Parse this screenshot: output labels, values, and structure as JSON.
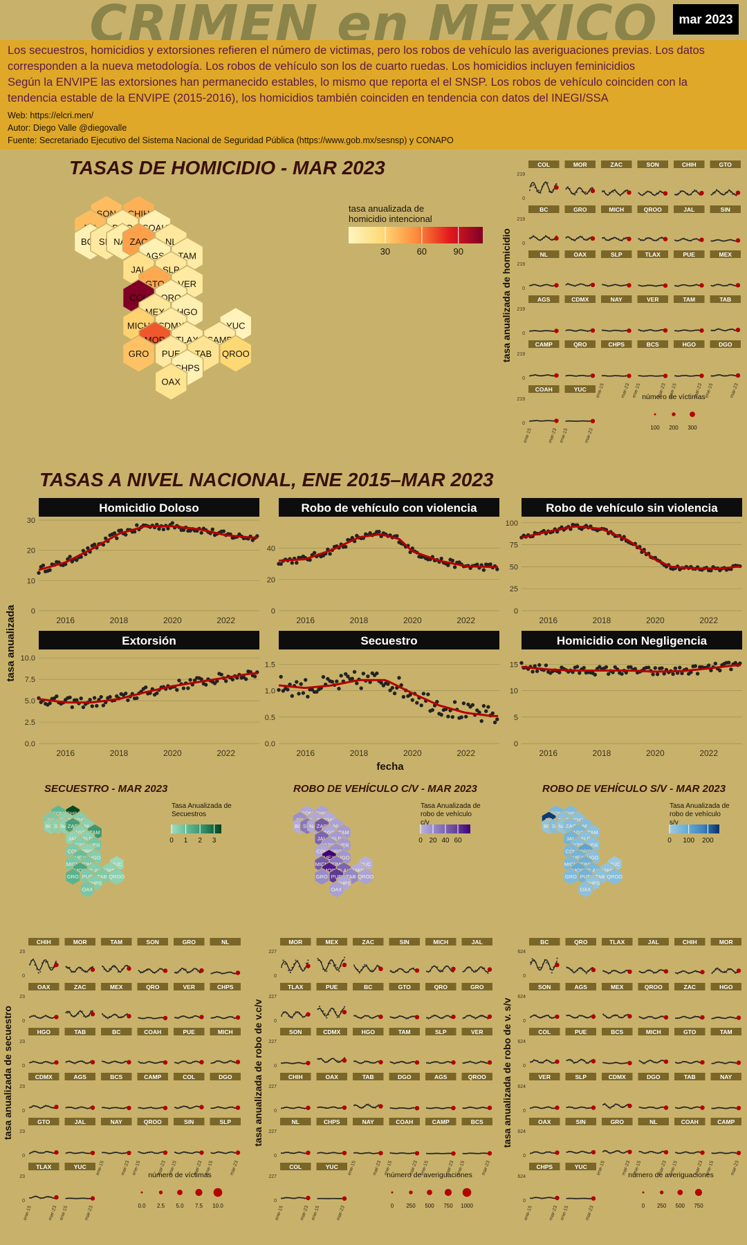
{
  "header": {
    "title": "CRIMEN en MEXICO",
    "date": "mar 2023"
  },
  "description": {
    "lines": [
      "Los secuestros, homicidios y extorsiones refieren el número de victimas, pero los robos de vehículo las averiguaciones previas. Los datos",
      "corresponden a la nueva metodología. Los robos de vehículo son los de cuarto ruedas. Los homicidios incluyen feminicidios",
      "Según la ENVIPE las extorsiones han permanecido estables, lo mismo que reporta el el SNSP. Los robos de vehículo coinciden con la",
      "tendencia estable de la ENVIPE (2015-2016), los homicidios también coinciden en tendencia con datos del INEGI/SSA"
    ],
    "web": "Web: https://elcri.men/",
    "author": "Autor: Diego Valle @diegovalle",
    "source": "Fuente: Secretariado Ejecutivo del Sistema Nacional de Seguridad Pública (https://www.gob.mx/sesnsp) y CONAPO"
  },
  "colors": {
    "background": "#c8b26b",
    "banner": "#e0a828",
    "panel_header": "#0d0d0d",
    "facet_strip": "#7a6628",
    "trend_line": "#b50000",
    "points": "#222222"
  },
  "chart_data": [
    {
      "type": "heatmap",
      "id": "homicide-hexmap",
      "title": "TASAS DE HOMICIDIO - MAR 2023",
      "legend_title": "tasa anualizada de homicidio intencional",
      "legend_ticks": [
        30,
        60,
        90
      ],
      "range": [
        0,
        110
      ],
      "palette": [
        "#fff5c0",
        "#fed976",
        "#fd8d3c",
        "#e31a1c",
        "#800026"
      ],
      "cells": [
        {
          "state": "SON",
          "q": 2,
          "r": 0,
          "value": 38
        },
        {
          "state": "CHIH",
          "q": 4,
          "r": 0,
          "value": 42
        },
        {
          "state": "BC",
          "q": 1,
          "r": 1,
          "value": 38
        },
        {
          "state": "DGO",
          "q": 3,
          "r": 1,
          "value": 10
        },
        {
          "state": "COAH",
          "q": 5,
          "r": 1,
          "value": 5
        },
        {
          "state": "BCS",
          "q": 1,
          "r": 2,
          "value": 4
        },
        {
          "state": "SIN",
          "q": 2,
          "r": 2,
          "value": 12
        },
        {
          "state": "NAY",
          "q": 3,
          "r": 2,
          "value": 8
        },
        {
          "state": "ZAC",
          "q": 4,
          "r": 2,
          "value": 48
        },
        {
          "state": "NL",
          "q": 6,
          "r": 2,
          "value": 13
        },
        {
          "state": "AGS",
          "q": 5,
          "r": 3,
          "value": 5
        },
        {
          "state": "TAM",
          "q": 7,
          "r": 3,
          "value": 10
        },
        {
          "state": "JAL",
          "q": 4,
          "r": 4,
          "value": 20
        },
        {
          "state": "SLP",
          "q": 6,
          "r": 4,
          "value": 13
        },
        {
          "state": "GTO",
          "q": 5,
          "r": 5,
          "value": 45
        },
        {
          "state": "VER",
          "q": 7,
          "r": 5,
          "value": 11
        },
        {
          "state": "COL",
          "q": 4,
          "r": 6,
          "value": 110
        },
        {
          "state": "QRO",
          "q": 6,
          "r": 6,
          "value": 7
        },
        {
          "state": "MEX",
          "q": 5,
          "r": 7,
          "value": 14
        },
        {
          "state": "HGO",
          "q": 7,
          "r": 7,
          "value": 6
        },
        {
          "state": "MICH",
          "q": 4,
          "r": 8,
          "value": 30
        },
        {
          "state": "CDMX",
          "q": 6,
          "r": 8,
          "value": 10
        },
        {
          "state": "YUC",
          "q": 10,
          "r": 8,
          "value": 2
        },
        {
          "state": "MOR",
          "q": 5,
          "r": 9,
          "value": 68
        },
        {
          "state": "TLAX",
          "q": 7,
          "r": 9,
          "value": 9
        },
        {
          "state": "CAMP",
          "q": 9,
          "r": 9,
          "value": 10
        },
        {
          "state": "GRO",
          "q": 4,
          "r": 10,
          "value": 36
        },
        {
          "state": "PUE",
          "q": 6,
          "r": 10,
          "value": 12
        },
        {
          "state": "TAB",
          "q": 8,
          "r": 10,
          "value": 17
        },
        {
          "state": "QROO",
          "q": 10,
          "r": 10,
          "value": 28
        },
        {
          "state": "CHPS",
          "q": 7,
          "r": 11,
          "value": 5
        },
        {
          "state": "OAX",
          "q": 6,
          "r": 12,
          "value": 18
        }
      ]
    },
    {
      "type": "line",
      "id": "homicide-small-multiples",
      "ylabel": "tasa anualizada de homicidio",
      "y_tick": "219",
      "legend_title": "número de víctimas",
      "legend_ticks": [
        "100",
        "200",
        "300"
      ],
      "x_ticks": [
        "ene-15",
        "mar-23"
      ],
      "states": [
        "COL",
        "MOR",
        "ZAC",
        "SON",
        "CHIH",
        "GTO",
        "BC",
        "GRO",
        "MICH",
        "QROO",
        "JAL",
        "SIN",
        "NL",
        "OAX",
        "SLP",
        "TLAX",
        "PUE",
        "MEX",
        "AGS",
        "CDMX",
        "NAY",
        "VER",
        "TAM",
        "TAB",
        "CAMP",
        "QRO",
        "CHPS",
        "BCS",
        "HGO",
        "DGO",
        "COAH",
        "YUC"
      ],
      "levels": [
        110,
        68,
        48,
        38,
        42,
        45,
        38,
        36,
        30,
        28,
        20,
        12,
        13,
        18,
        13,
        9,
        12,
        14,
        5,
        10,
        8,
        11,
        10,
        17,
        10,
        7,
        5,
        4,
        6,
        10,
        5,
        2
      ]
    },
    {
      "type": "line",
      "id": "national-trends",
      "title": "TASAS A NIVEL NACIONAL, ENE 2015–MAR 2023",
      "xlabel": "fecha",
      "ylabel": "tasa anualizada",
      "x_range": [
        2015,
        2023.25
      ],
      "x_ticks": [
        2016,
        2018,
        2020,
        2022
      ],
      "panels": [
        {
          "name": "Homicidio Doloso",
          "ylim": [
            0,
            30
          ],
          "yticks": [
            0,
            10,
            20,
            30
          ],
          "tick_labels": [
            "0",
            "10",
            "20",
            "30"
          ],
          "trend": [
            [
              2015,
              13.5
            ],
            [
              2016,
              16
            ],
            [
              2017,
              20.5
            ],
            [
              2018,
              25.5
            ],
            [
              2019,
              28
            ],
            [
              2020,
              28
            ],
            [
              2021,
              27
            ],
            [
              2022,
              25
            ],
            [
              2023,
              24.2
            ]
          ],
          "noise": 1.2
        },
        {
          "name": "Robo de vehículo con violencia",
          "ylim": [
            0,
            58
          ],
          "yticks": [
            0,
            20,
            40
          ],
          "tick_labels": [
            "0",
            "20",
            "40"
          ],
          "trend": [
            [
              2015,
              32
            ],
            [
              2016,
              33
            ],
            [
              2017,
              39
            ],
            [
              2018,
              47
            ],
            [
              2018.8,
              49
            ],
            [
              2019.5,
              46
            ],
            [
              2020,
              38
            ],
            [
              2021,
              32
            ],
            [
              2022,
              28.5
            ],
            [
              2023,
              28
            ]
          ],
          "noise": 2.2
        },
        {
          "name": "Robo de vehículo sin violencia",
          "ylim": [
            0,
            103
          ],
          "yticks": [
            0,
            25,
            50,
            75,
            100
          ],
          "tick_labels": [
            "0",
            "25",
            "50",
            "75",
            "100"
          ],
          "trend": [
            [
              2015,
              83
            ],
            [
              2016,
              90
            ],
            [
              2017,
              96
            ],
            [
              2018,
              93
            ],
            [
              2019,
              80
            ],
            [
              2020,
              58
            ],
            [
              2020.6,
              50
            ],
            [
              2021.5,
              48
            ],
            [
              2022.5,
              48
            ],
            [
              2023,
              50
            ]
          ],
          "noise": 2.5
        },
        {
          "name": "Extorsión",
          "ylim": [
            0,
            10.5
          ],
          "yticks": [
            0,
            2.5,
            5,
            7.5,
            10
          ],
          "tick_labels": [
            "0.0",
            "2.5",
            "5.0",
            "7.5",
            "10.0"
          ],
          "trend": [
            [
              2015,
              5.2
            ],
            [
              2016,
              4.8
            ],
            [
              2017,
              4.8
            ],
            [
              2018,
              5.2
            ],
            [
              2019,
              6
            ],
            [
              2020,
              6.7
            ],
            [
              2021,
              7.2
            ],
            [
              2022,
              7.7
            ],
            [
              2023,
              8.2
            ]
          ],
          "noise": 0.6
        },
        {
          "name": "Secuestro",
          "ylim": [
            0,
            1.7
          ],
          "yticks": [
            0,
            0.5,
            1,
            1.5
          ],
          "tick_labels": [
            "0.0",
            "0.5",
            "1.0",
            "1.5"
          ],
          "trend": [
            [
              2015,
              1.1
            ],
            [
              2016,
              1.05
            ],
            [
              2017,
              1.1
            ],
            [
              2018,
              1.2
            ],
            [
              2019,
              1.2
            ],
            [
              2020,
              0.95
            ],
            [
              2021,
              0.72
            ],
            [
              2022,
              0.58
            ],
            [
              2023,
              0.52
            ]
          ],
          "noise": 0.18
        },
        {
          "name": "Homicidio con Negligencia",
          "ylim": [
            0,
            17
          ],
          "yticks": [
            0,
            5,
            10,
            15
          ],
          "tick_labels": [
            "0",
            "5",
            "10",
            "15"
          ],
          "trend": [
            [
              2015,
              14.5
            ],
            [
              2016,
              14
            ],
            [
              2017,
              13.8
            ],
            [
              2018,
              13.8
            ],
            [
              2019,
              13.8
            ],
            [
              2020,
              13.6
            ],
            [
              2021,
              13.7
            ],
            [
              2022,
              14.2
            ],
            [
              2023,
              14.8
            ]
          ],
          "noise": 0.8
        }
      ]
    },
    {
      "type": "heatmap",
      "id": "secuestro-hexmap",
      "title": "SECUESTRO - MAR 2023",
      "legend_title": "Tasa Anualizada de Secuestros",
      "legend_ticks": [
        "0",
        "1",
        "2",
        "3"
      ],
      "range": [
        0,
        3.5
      ],
      "palette": [
        "#a0dcc0",
        "#5fb894",
        "#2e8b63",
        "#00441b"
      ],
      "values": {
        "SON": 1.2,
        "CHIH": 3.4,
        "BC": 0.6,
        "DGO": 0.4,
        "COAH": 0.5,
        "BCS": 0.3,
        "SIN": 0.4,
        "NAY": 0.3,
        "ZAC": 1.8,
        "NL": 0.4,
        "AGS": 0.4,
        "TAM": 2.0,
        "JAL": 0.3,
        "SLP": 0.4,
        "GTO": 0.5,
        "VER": 0.7,
        "COL": 0.6,
        "QRO": 0.3,
        "MEX": 1.0,
        "HGO": 0.5,
        "MICH": 0.7,
        "CDMX": 0.7,
        "YUC": 0.1,
        "MOR": 1.6,
        "TLAX": 0.5,
        "CAMP": 0.3,
        "GRO": 1.3,
        "PUE": 0.6,
        "TAB": 0.6,
        "QROO": 0.4,
        "CHPS": 0.5,
        "OAX": 0.7
      }
    },
    {
      "type": "heatmap",
      "id": "robo-cv-hexmap",
      "title": "ROBO DE VEHÍCULO C/V - MAR 2023",
      "legend_title": "Tasa Anualizada de robo de vehículo c/v",
      "legend_ticks": [
        "0",
        "20",
        "40",
        "60"
      ],
      "range": [
        0,
        80
      ],
      "palette": [
        "#b8b2dc",
        "#8d7fc4",
        "#6a4a9e",
        "#3f007d"
      ],
      "values": {
        "SON": 6,
        "CHIH": 8,
        "BC": 18,
        "DGO": 5,
        "COAH": 4,
        "BCS": 3,
        "SIN": 30,
        "NAY": 5,
        "ZAC": 45,
        "NL": 8,
        "AGS": 6,
        "TAM": 12,
        "JAL": 40,
        "SLP": 12,
        "GTO": 15,
        "VER": 12,
        "COL": 6,
        "QRO": 18,
        "MEX": 80,
        "HGO": 14,
        "MICH": 45,
        "CDMX": 30,
        "YUC": 1,
        "MOR": 70,
        "TLAX": 40,
        "CAMP": 2,
        "GRO": 20,
        "PUE": 60,
        "TAB": 22,
        "QROO": 8,
        "CHPS": 6,
        "OAX": 10
      }
    },
    {
      "type": "heatmap",
      "id": "robo-sv-hexmap",
      "title": "ROBO DE VEHÍCULO S/V - MAR 2023",
      "legend_title": "Tasa Anualizada de robo de vehículo s/v",
      "legend_ticks": [
        "0",
        "100",
        "200"
      ],
      "range": [
        0,
        260
      ],
      "palette": [
        "#9ecae1",
        "#6baed6",
        "#3f84c0",
        "#08306b"
      ],
      "values": {
        "SON": 60,
        "CHIH": 50,
        "BC": 250,
        "DGO": 30,
        "COAH": 30,
        "BCS": 20,
        "SIN": 40,
        "NAY": 20,
        "ZAC": 40,
        "NL": 40,
        "AGS": 60,
        "TAM": 30,
        "JAL": 70,
        "SLP": 30,
        "GTO": 40,
        "VER": 30,
        "COL": 60,
        "QRO": 110,
        "MEX": 70,
        "HGO": 30,
        "MICH": 60,
        "CDMX": 80,
        "YUC": 5,
        "MOR": 90,
        "TLAX": 60,
        "CAMP": 20,
        "GRO": 50,
        "PUE": 70,
        "TAB": 30,
        "QROO": 40,
        "CHPS": 20,
        "OAX": 30
      }
    },
    {
      "type": "line",
      "id": "secuestro-small-multiples",
      "ylabel": "tasa anualizada de secuestro",
      "y_tick": "23",
      "legend_title": "número de víctimas",
      "legend_ticks": [
        "0.0",
        "2.5",
        "5.0",
        "7.5",
        "10.0"
      ],
      "x_ticks": [
        "ene-15",
        "mar-23"
      ],
      "states": [
        "CHIH",
        "MOR",
        "TAM",
        "SON",
        "GRO",
        "NL",
        "OAX",
        "ZAC",
        "MEX",
        "QRO",
        "VER",
        "CHPS",
        "HGO",
        "TAB",
        "BC",
        "COAH",
        "PUE",
        "MICH",
        "CDMX",
        "AGS",
        "BCS",
        "CAMP",
        "COL",
        "DGO",
        "GTO",
        "JAL",
        "NAY",
        "QROO",
        "SIN",
        "SLP",
        "TLAX",
        "YUC"
      ],
      "levels": [
        3.4,
        1.6,
        2.0,
        1.2,
        1.3,
        0.4,
        0.7,
        1.8,
        1.0,
        0.3,
        0.7,
        0.5,
        0.5,
        0.6,
        0.6,
        0.5,
        0.6,
        0.7,
        0.7,
        0.4,
        0.3,
        0.3,
        0.6,
        0.4,
        0.5,
        0.3,
        0.3,
        0.4,
        0.4,
        0.4,
        0.5,
        0.1
      ]
    },
    {
      "type": "line",
      "id": "robo-cv-small-multiples",
      "ylabel": "tasa anualizada de robo de v.c/v",
      "y_tick": "227",
      "legend_title": "número de averiguaciones",
      "legend_ticks": [
        "0",
        "250",
        "500",
        "750",
        "1000"
      ],
      "x_ticks": [
        "ene-15",
        "mar-23"
      ],
      "states": [
        "MOR",
        "MEX",
        "ZAC",
        "SIN",
        "MICH",
        "JAL",
        "TLAX",
        "PUE",
        "BC",
        "GTO",
        "QRO",
        "GRO",
        "SON",
        "CDMX",
        "HGO",
        "TAM",
        "SLP",
        "VER",
        "CHIH",
        "OAX",
        "TAB",
        "DGO",
        "AGS",
        "QROO",
        "NL",
        "CHPS",
        "NAY",
        "COAH",
        "CAMP",
        "BCS",
        "COL",
        "YUC"
      ],
      "levels": [
        70,
        80,
        45,
        30,
        45,
        40,
        40,
        60,
        18,
        15,
        18,
        20,
        6,
        30,
        14,
        12,
        12,
        12,
        8,
        10,
        22,
        5,
        6,
        8,
        8,
        6,
        5,
        4,
        2,
        3,
        6,
        1
      ]
    },
    {
      "type": "line",
      "id": "robo-sv-small-multiples",
      "ylabel": "tasa anualizada de robo de v. s/v",
      "y_tick": "624",
      "legend_title": "número de averiguaciones",
      "legend_ticks": [
        "0",
        "250",
        "500",
        "750"
      ],
      "x_ticks": [
        "ene-15",
        "mar-23"
      ],
      "states": [
        "BC",
        "QRO",
        "TLAX",
        "JAL",
        "CHIH",
        "MOR",
        "SON",
        "AGS",
        "MEX",
        "QROO",
        "ZAC",
        "HGO",
        "COL",
        "PUE",
        "BCS",
        "MICH",
        "GTO",
        "TAM",
        "VER",
        "SLP",
        "CDMX",
        "DGO",
        "TAB",
        "NAY",
        "OAX",
        "SIN",
        "GRO",
        "NL",
        "COAH",
        "CAMP",
        "CHPS",
        "YUC"
      ],
      "levels": [
        250,
        110,
        60,
        70,
        50,
        90,
        60,
        60,
        70,
        40,
        40,
        30,
        60,
        70,
        20,
        60,
        40,
        30,
        30,
        30,
        80,
        30,
        30,
        20,
        30,
        40,
        50,
        40,
        30,
        20,
        20,
        5
      ]
    }
  ]
}
